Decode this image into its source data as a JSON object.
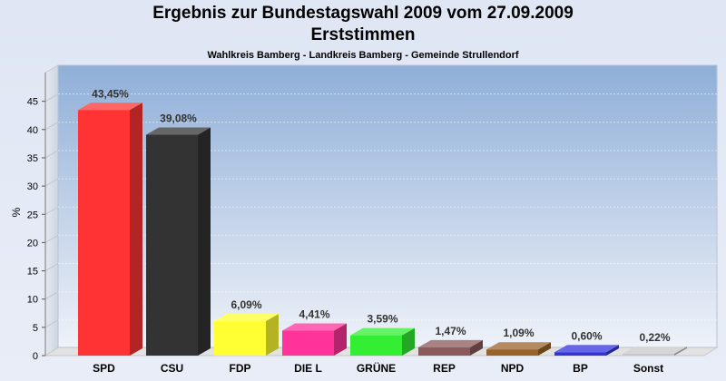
{
  "chart_data": {
    "type": "bar",
    "title": "Ergebnis zur Bundestagswahl 2009 vom 27.09.2009",
    "title_line2": "Erststimmen",
    "subtitle": "Wahlkreis Bamberg - Landkreis Bamberg - Gemeinde Strullendorf",
    "ylabel": "%",
    "ylim": [
      0,
      48
    ],
    "yticks": [
      0,
      5,
      10,
      15,
      20,
      25,
      30,
      35,
      40,
      45
    ],
    "grid": true,
    "categories": [
      "SPD",
      "CSU",
      "FDP",
      "DIE L",
      "GRÜNE",
      "REP",
      "NPD",
      "BP",
      "Sonst"
    ],
    "values": [
      43.45,
      39.08,
      6.09,
      4.41,
      3.59,
      1.47,
      1.09,
      0.6,
      0.22
    ],
    "value_labels": [
      "43,45%",
      "39,08%",
      "6,09%",
      "4,41%",
      "3,59%",
      "1,47%",
      "1,09%",
      "0,60%",
      "0,22%"
    ],
    "colors": [
      "#ff3333",
      "#333333",
      "#ffff33",
      "#ff3399",
      "#33ee33",
      "#8c5a5a",
      "#99642a",
      "#3333dd",
      "#c8c8c8"
    ]
  }
}
